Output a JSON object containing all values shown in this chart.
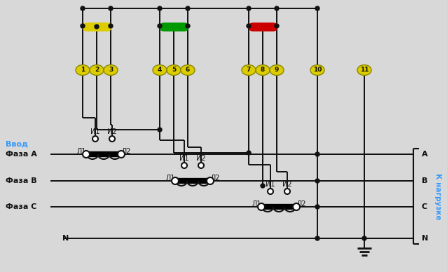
{
  "bg_color": "#d8d8d8",
  "line_color": "#111111",
  "phase_label_color": "#3399ff",
  "yellow_bus_color": "#ddcc00",
  "green_bus_color": "#009900",
  "red_bus_color": "#cc0000",
  "terminal_bg": "#ddcc00",
  "vvod_label": "Ввод",
  "faza_a": "Фаза А",
  "faza_b": "Фаза В",
  "faza_c": "Фаза С",
  "n_label": "N",
  "k_nagruzke": "К нагрузке",
  "a_label": "А",
  "b_label": "В",
  "c_label": "С",
  "n_out_label": "N",
  "terminal_numbers": [
    "1",
    "2",
    "3",
    "4",
    "5",
    "6",
    "7",
    "8",
    "9",
    "10",
    "11"
  ],
  "figw": 6.38,
  "figh": 3.88,
  "dpi": 100
}
